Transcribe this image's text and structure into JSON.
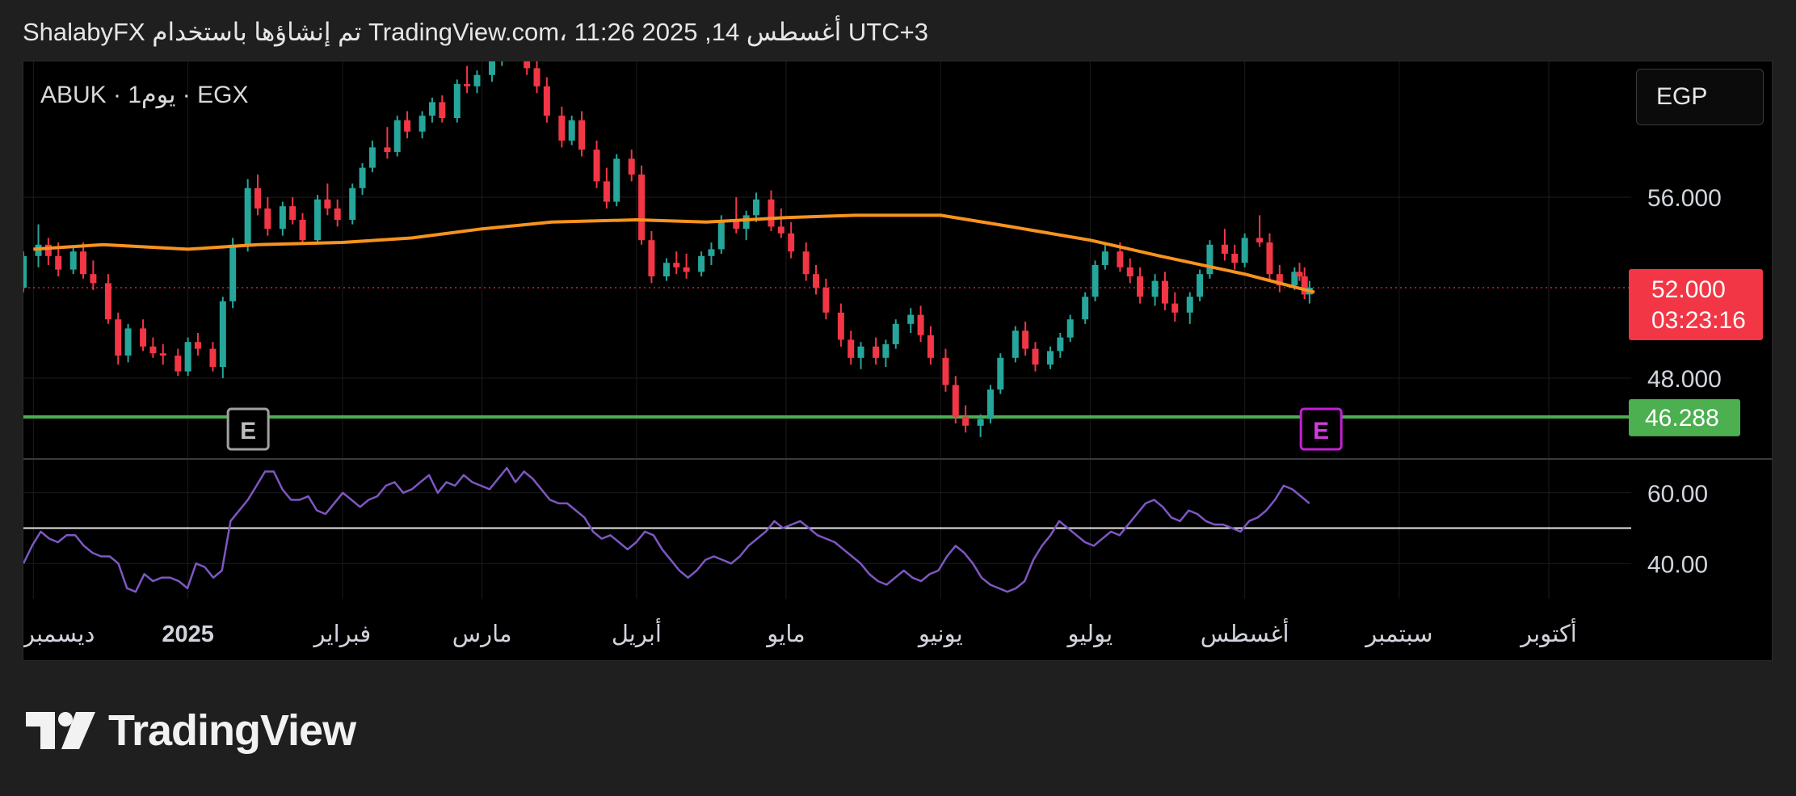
{
  "header": {
    "attribution": "ShalabyFX تم إنشاؤها باستخدام TradingView.com، 11:26 2025 ,14 أغسطس UTC+3"
  },
  "chart": {
    "symbol_label": "ABUK · 1يوم · EGX",
    "currency": "EGP",
    "earnings_markers": [
      "E",
      "E"
    ],
    "logo_text": "TradingView"
  },
  "chart_data": {
    "type": "candlestick",
    "symbol": "ABUK",
    "exchange": "EGX",
    "interval": "1D",
    "price_axis": {
      "ticks": [
        {
          "value": 56,
          "label": "56.000"
        },
        {
          "value": 48,
          "label": "48.000"
        }
      ],
      "ylim": [
        44.5,
        62.0
      ]
    },
    "last_price": {
      "value": 52.0,
      "label": "52.000",
      "countdown": "03:23:16",
      "color": "#f23645"
    },
    "horizontal_level": {
      "value": 46.288,
      "label": "46.288",
      "color": "#4caf50"
    },
    "moving_average": {
      "color": "#f7931e",
      "points": [
        [
          "2024-12-01",
          53.7
        ],
        [
          "2024-12-15",
          53.9
        ],
        [
          "2025-01-01",
          53.7
        ],
        [
          "2025-01-15",
          53.9
        ],
        [
          "2025-02-01",
          54.0
        ],
        [
          "2025-02-15",
          54.2
        ],
        [
          "2025-03-01",
          54.6
        ],
        [
          "2025-03-15",
          54.9
        ],
        [
          "2025-04-01",
          55.0
        ],
        [
          "2025-04-15",
          54.9
        ],
        [
          "2025-05-01",
          55.1
        ],
        [
          "2025-05-15",
          55.2
        ],
        [
          "2025-06-01",
          55.2
        ],
        [
          "2025-06-15",
          54.7
        ],
        [
          "2025-07-01",
          54.1
        ],
        [
          "2025-07-15",
          53.4
        ],
        [
          "2025-08-01",
          52.6
        ],
        [
          "2025-08-15",
          51.8
        ]
      ]
    },
    "candles": [
      [
        "2024-11-29",
        52.0,
        53.6,
        51.8,
        53.4
      ],
      [
        "2024-12-02",
        53.4,
        54.8,
        52.9,
        53.9
      ],
      [
        "2024-12-04",
        53.9,
        54.2,
        53.0,
        53.4
      ],
      [
        "2024-12-06",
        53.4,
        54.0,
        52.5,
        52.8
      ],
      [
        "2024-12-09",
        52.8,
        53.8,
        52.6,
        53.6
      ],
      [
        "2024-12-11",
        53.6,
        54.0,
        52.4,
        52.6
      ],
      [
        "2024-12-13",
        52.6,
        53.2,
        51.9,
        52.2
      ],
      [
        "2024-12-16",
        52.2,
        52.6,
        50.4,
        50.6
      ],
      [
        "2024-12-18",
        50.6,
        50.9,
        48.6,
        49.0
      ],
      [
        "2024-12-20",
        49.0,
        50.4,
        48.7,
        50.2
      ],
      [
        "2024-12-23",
        50.2,
        50.6,
        49.2,
        49.4
      ],
      [
        "2024-12-25",
        49.4,
        49.8,
        48.9,
        49.1
      ],
      [
        "2024-12-27",
        49.1,
        49.5,
        48.6,
        49.0
      ],
      [
        "2024-12-30",
        49.0,
        49.3,
        48.1,
        48.3
      ],
      [
        "2025-01-01",
        48.3,
        49.8,
        48.1,
        49.6
      ],
      [
        "2025-01-03",
        49.6,
        50.0,
        49.0,
        49.3
      ],
      [
        "2025-01-06",
        49.3,
        49.6,
        48.3,
        48.5
      ],
      [
        "2025-01-08",
        48.5,
        51.6,
        48.0,
        51.4
      ],
      [
        "2025-01-10",
        51.4,
        54.2,
        51.1,
        53.9
      ],
      [
        "2025-01-13",
        53.9,
        56.8,
        53.6,
        56.4
      ],
      [
        "2025-01-15",
        56.4,
        57.0,
        55.2,
        55.5
      ],
      [
        "2025-01-17",
        55.5,
        56.0,
        54.3,
        54.6
      ],
      [
        "2025-01-20",
        54.6,
        55.8,
        54.3,
        55.6
      ],
      [
        "2025-01-22",
        55.6,
        56.0,
        54.8,
        55.0
      ],
      [
        "2025-01-24",
        55.0,
        55.3,
        53.9,
        54.1
      ],
      [
        "2025-01-27",
        54.1,
        56.1,
        53.9,
        55.9
      ],
      [
        "2025-01-29",
        55.9,
        56.6,
        55.2,
        55.5
      ],
      [
        "2025-01-31",
        55.5,
        55.9,
        54.7,
        55.0
      ],
      [
        "2025-02-03",
        55.0,
        56.6,
        54.8,
        56.4
      ],
      [
        "2025-02-05",
        56.4,
        57.5,
        56.1,
        57.3
      ],
      [
        "2025-02-07",
        57.3,
        58.5,
        57.1,
        58.2
      ],
      [
        "2025-02-10",
        58.2,
        59.1,
        57.7,
        58.0
      ],
      [
        "2025-02-12",
        58.0,
        59.6,
        57.8,
        59.4
      ],
      [
        "2025-02-14",
        59.4,
        59.8,
        58.6,
        58.9
      ],
      [
        "2025-02-17",
        58.9,
        59.8,
        58.6,
        59.6
      ],
      [
        "2025-02-19",
        59.6,
        60.4,
        59.3,
        60.2
      ],
      [
        "2025-02-21",
        60.2,
        60.5,
        59.3,
        59.5
      ],
      [
        "2025-02-24",
        59.5,
        61.2,
        59.3,
        61.0
      ],
      [
        "2025-02-26",
        61.0,
        61.8,
        60.6,
        60.9
      ],
      [
        "2025-02-28",
        60.9,
        61.6,
        60.6,
        61.4
      ],
      [
        "2025-03-03",
        61.4,
        62.4,
        61.1,
        62.2
      ],
      [
        "2025-03-05",
        62.2,
        63.2,
        61.8,
        62.9
      ],
      [
        "2025-03-07",
        62.9,
        63.4,
        62.0,
        62.3
      ],
      [
        "2025-03-10",
        62.3,
        62.8,
        61.4,
        61.7
      ],
      [
        "2025-03-12",
        61.7,
        62.1,
        60.6,
        60.9
      ],
      [
        "2025-03-14",
        60.9,
        61.3,
        59.3,
        59.6
      ],
      [
        "2025-03-17",
        59.6,
        60.0,
        58.2,
        58.5
      ],
      [
        "2025-03-19",
        58.5,
        59.6,
        58.3,
        59.4
      ],
      [
        "2025-03-21",
        59.4,
        59.8,
        57.8,
        58.1
      ],
      [
        "2025-03-24",
        58.1,
        58.5,
        56.4,
        56.7
      ],
      [
        "2025-03-26",
        56.7,
        57.3,
        55.5,
        55.8
      ],
      [
        "2025-03-28",
        55.8,
        57.9,
        55.6,
        57.7
      ],
      [
        "2025-03-31",
        57.7,
        58.1,
        56.7,
        57.0
      ],
      [
        "2025-04-02",
        57.0,
        57.4,
        53.9,
        54.1
      ],
      [
        "2025-04-04",
        54.1,
        54.5,
        52.2,
        52.5
      ],
      [
        "2025-04-07",
        52.5,
        53.3,
        52.3,
        53.1
      ],
      [
        "2025-04-09",
        53.1,
        53.6,
        52.6,
        52.9
      ],
      [
        "2025-04-11",
        52.9,
        53.5,
        52.4,
        52.7
      ],
      [
        "2025-04-14",
        52.7,
        53.6,
        52.5,
        53.4
      ],
      [
        "2025-04-16",
        53.4,
        54.0,
        53.0,
        53.7
      ],
      [
        "2025-04-18",
        53.7,
        55.2,
        53.5,
        55.0
      ],
      [
        "2025-04-21",
        55.0,
        56.0,
        54.4,
        54.6
      ],
      [
        "2025-04-23",
        54.6,
        55.4,
        54.1,
        55.2
      ],
      [
        "2025-04-25",
        55.2,
        56.2,
        54.9,
        55.9
      ],
      [
        "2025-04-28",
        55.9,
        56.3,
        54.5,
        54.7
      ],
      [
        "2025-04-30",
        54.7,
        55.5,
        54.2,
        54.4
      ],
      [
        "2025-05-02",
        54.4,
        54.9,
        53.3,
        53.6
      ],
      [
        "2025-05-05",
        53.6,
        54.0,
        52.3,
        52.6
      ],
      [
        "2025-05-07",
        52.6,
        53.0,
        51.7,
        52.0
      ],
      [
        "2025-05-09",
        52.0,
        52.4,
        50.6,
        50.9
      ],
      [
        "2025-05-12",
        50.9,
        51.3,
        49.4,
        49.7
      ],
      [
        "2025-05-14",
        49.7,
        50.1,
        48.6,
        48.9
      ],
      [
        "2025-05-16",
        48.9,
        49.6,
        48.4,
        49.4
      ],
      [
        "2025-05-19",
        49.4,
        49.8,
        48.6,
        48.9
      ],
      [
        "2025-05-21",
        48.9,
        49.7,
        48.5,
        49.5
      ],
      [
        "2025-05-23",
        49.5,
        50.6,
        49.3,
        50.4
      ],
      [
        "2025-05-26",
        50.4,
        51.1,
        50.0,
        50.8
      ],
      [
        "2025-05-28",
        50.8,
        51.2,
        49.6,
        49.9
      ],
      [
        "2025-05-30",
        49.9,
        50.3,
        48.6,
        48.9
      ],
      [
        "2025-06-02",
        48.9,
        49.3,
        47.4,
        47.7
      ],
      [
        "2025-06-04",
        47.7,
        48.1,
        46.0,
        46.3
      ],
      [
        "2025-06-06",
        46.3,
        46.8,
        45.6,
        45.9
      ],
      [
        "2025-06-09",
        45.9,
        46.4,
        45.4,
        46.2
      ],
      [
        "2025-06-11",
        46.2,
        47.7,
        46.0,
        47.5
      ],
      [
        "2025-06-13",
        47.5,
        49.1,
        47.3,
        48.9
      ],
      [
        "2025-06-16",
        48.9,
        50.3,
        48.7,
        50.1
      ],
      [
        "2025-06-18",
        50.1,
        50.5,
        49.0,
        49.3
      ],
      [
        "2025-06-20",
        49.3,
        49.6,
        48.3,
        48.6
      ],
      [
        "2025-06-23",
        48.6,
        49.4,
        48.4,
        49.2
      ],
      [
        "2025-06-25",
        49.2,
        50.0,
        48.9,
        49.8
      ],
      [
        "2025-06-27",
        49.8,
        50.8,
        49.6,
        50.6
      ],
      [
        "2025-06-30",
        50.6,
        51.8,
        50.4,
        51.6
      ],
      [
        "2025-07-02",
        51.6,
        53.2,
        51.4,
        53.0
      ],
      [
        "2025-07-04",
        53.0,
        54.0,
        52.8,
        53.6
      ],
      [
        "2025-07-07",
        53.6,
        54.0,
        52.7,
        52.9
      ],
      [
        "2025-07-09",
        52.9,
        53.3,
        52.2,
        52.5
      ],
      [
        "2025-07-11",
        52.5,
        52.9,
        51.3,
        51.6
      ],
      [
        "2025-07-14",
        51.6,
        52.6,
        51.2,
        52.3
      ],
      [
        "2025-07-16",
        52.3,
        52.7,
        51.0,
        51.3
      ],
      [
        "2025-07-18",
        51.3,
        51.8,
        50.5,
        50.9
      ],
      [
        "2025-07-21",
        50.9,
        51.8,
        50.4,
        51.6
      ],
      [
        "2025-07-23",
        51.6,
        52.8,
        51.4,
        52.6
      ],
      [
        "2025-07-25",
        52.6,
        54.1,
        52.4,
        53.9
      ],
      [
        "2025-07-28",
        53.9,
        54.6,
        53.2,
        53.5
      ],
      [
        "2025-07-30",
        53.5,
        53.9,
        52.8,
        53.1
      ],
      [
        "2025-08-01",
        53.1,
        54.4,
        52.9,
        54.2
      ],
      [
        "2025-08-04",
        54.2,
        55.2,
        53.8,
        54.0
      ],
      [
        "2025-08-06",
        54.0,
        54.4,
        52.3,
        52.6
      ],
      [
        "2025-08-08",
        52.6,
        53.0,
        51.8,
        52.1
      ],
      [
        "2025-08-11",
        52.1,
        52.9,
        51.9,
        52.7
      ],
      [
        "2025-08-12",
        52.7,
        53.1,
        52.3,
        52.5
      ],
      [
        "2025-08-13",
        52.5,
        52.9,
        51.5,
        51.7
      ],
      [
        "2025-08-14",
        51.7,
        52.3,
        51.3,
        52.0
      ]
    ],
    "time_axis": [
      {
        "date": "2024-12-01",
        "label": "ديسمبر"
      },
      {
        "date": "2025-01-01",
        "label": "2025",
        "bold": true
      },
      {
        "date": "2025-02-01",
        "label": "فبراير"
      },
      {
        "date": "2025-03-01",
        "label": "مارس"
      },
      {
        "date": "2025-04-01",
        "label": "أبريل"
      },
      {
        "date": "2025-05-01",
        "label": "مايو"
      },
      {
        "date": "2025-06-01",
        "label": "يونيو"
      },
      {
        "date": "2025-07-01",
        "label": "يوليو"
      },
      {
        "date": "2025-08-01",
        "label": "أغسطس"
      },
      {
        "date": "2025-09-01",
        "label": "سبتمبر"
      },
      {
        "date": "2025-10-01",
        "label": "أكتوبر"
      }
    ],
    "earnings_marker_dates": [
      "2025-01-10",
      "2025-08-10"
    ],
    "indicator": {
      "type": "line",
      "color": "#7e57c2",
      "ylim": [
        30.0,
        70.0
      ],
      "baseline": 50.0,
      "ticks": [
        {
          "value": 60,
          "label": "60.00"
        },
        {
          "value": 40,
          "label": "40.00"
        }
      ],
      "values": [
        40,
        45,
        49,
        47,
        46,
        48,
        48,
        45,
        43,
        42,
        42,
        40,
        33,
        32,
        37,
        35,
        36,
        36,
        35,
        33,
        40,
        39,
        36,
        38,
        52,
        55,
        58,
        62,
        66,
        66,
        61,
        58,
        58,
        59,
        55,
        54,
        57,
        60,
        58,
        56,
        58,
        59,
        62,
        63,
        60,
        61,
        63,
        65,
        60,
        63,
        62,
        65,
        63,
        62,
        61,
        64,
        67,
        63,
        66,
        64,
        61,
        58,
        57,
        57,
        55,
        53,
        49,
        47,
        48,
        46,
        44,
        46,
        49,
        48,
        44,
        41,
        38,
        36,
        38,
        41,
        42,
        41,
        40,
        42,
        45,
        47,
        49,
        52,
        50,
        51,
        52,
        50,
        48,
        47,
        46,
        44,
        42,
        40,
        37,
        35,
        34,
        36,
        38,
        36,
        35,
        37,
        38,
        42,
        45,
        43,
        40,
        36,
        34,
        33,
        32,
        33,
        35,
        41,
        45,
        48,
        52,
        50,
        48,
        46,
        45,
        47,
        49,
        48,
        51,
        54,
        57,
        58,
        56,
        53,
        52,
        55,
        54,
        52,
        51,
        51,
        50,
        49,
        52,
        53,
        55,
        58,
        62,
        61,
        59,
        57
      ]
    }
  }
}
